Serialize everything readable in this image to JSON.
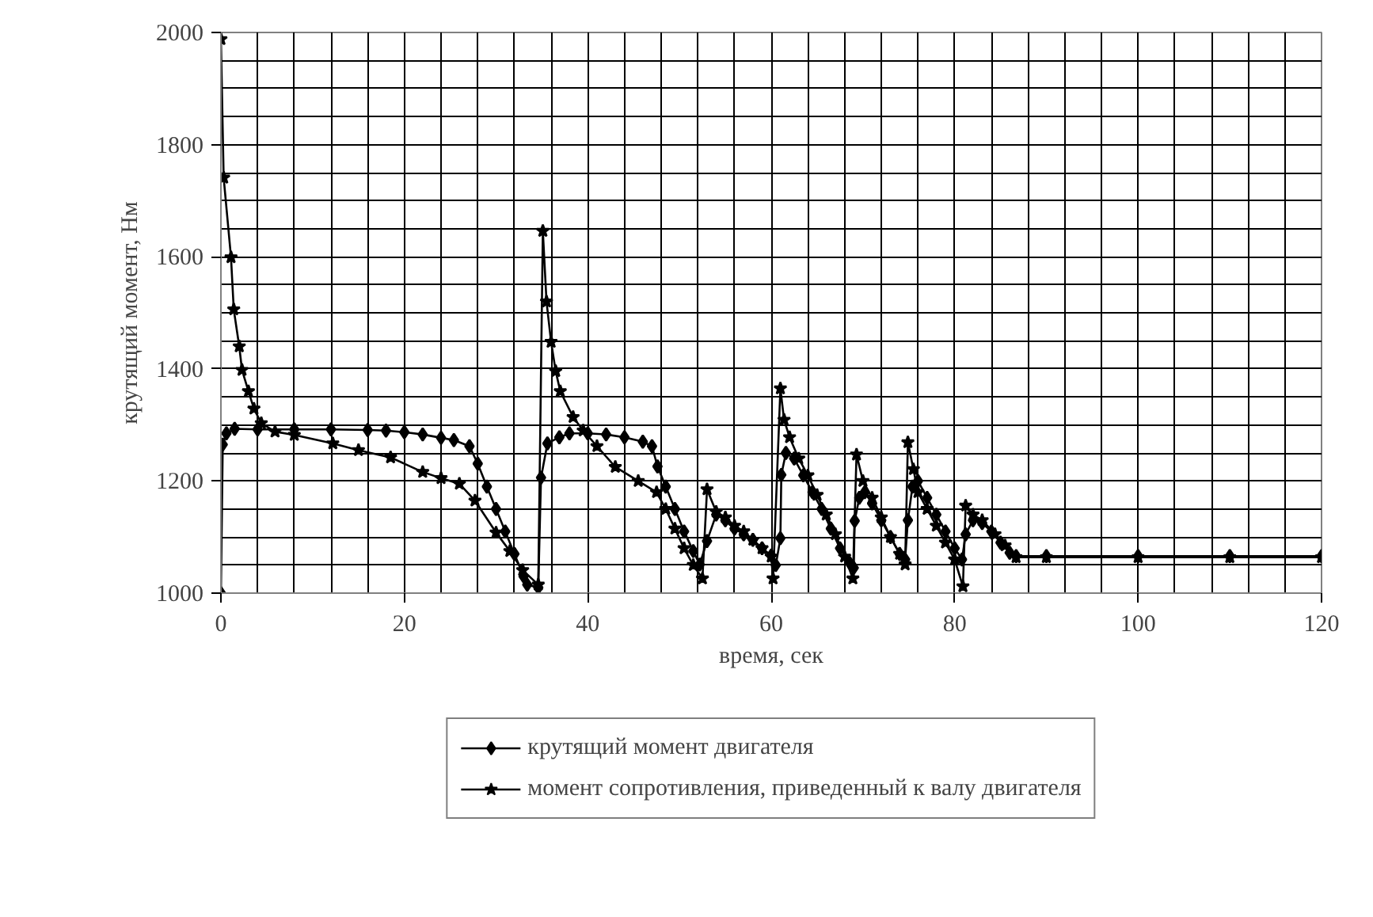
{
  "chart_data": {
    "type": "line",
    "xlabel": "время, сек",
    "ylabel": "крутящий момент, Нм",
    "xlim": [
      0,
      120
    ],
    "ylim": [
      1000,
      2000
    ],
    "xticks": [
      0,
      {
        "value": 4,
        "label": null
      },
      {
        "value": 8,
        "label": null
      },
      {
        "value": 12,
        "label": null
      },
      {
        "value": 16,
        "label": null
      },
      20,
      {
        "value": 24,
        "label": null
      },
      {
        "value": 28,
        "label": null
      },
      {
        "value": 32,
        "label": null
      },
      {
        "value": 36,
        "label": null
      },
      40,
      {
        "value": 44,
        "label": null
      },
      {
        "value": 48,
        "label": null
      },
      {
        "value": 52,
        "label": null
      },
      {
        "value": 56,
        "label": null
      },
      60,
      {
        "value": 64,
        "label": null
      },
      {
        "value": 68,
        "label": null
      },
      {
        "value": 72,
        "label": null
      },
      {
        "value": 76,
        "label": null
      },
      80,
      {
        "value": 84,
        "label": null
      },
      {
        "value": 88,
        "label": null
      },
      {
        "value": 92,
        "label": null
      },
      {
        "value": 96,
        "label": null
      },
      100,
      {
        "value": 104,
        "label": null
      },
      {
        "value": 108,
        "label": null
      },
      {
        "value": 112,
        "label": null
      },
      {
        "value": 116,
        "label": null
      },
      120
    ],
    "yticks": [
      1000,
      {
        "value": 1050,
        "label": null
      },
      {
        "value": 1100,
        "label": null
      },
      {
        "value": 1150,
        "label": null
      },
      1200,
      {
        "value": 1250,
        "label": null
      },
      {
        "value": 1300,
        "label": null
      },
      {
        "value": 1350,
        "label": null
      },
      1400,
      {
        "value": 1450,
        "label": null
      },
      {
        "value": 1500,
        "label": null
      },
      {
        "value": 1550,
        "label": null
      },
      1600,
      {
        "value": 1650,
        "label": null
      },
      {
        "value": 1700,
        "label": null
      },
      {
        "value": 1750,
        "label": null
      },
      1800,
      {
        "value": 1850,
        "label": null
      },
      {
        "value": 1900,
        "label": null
      },
      {
        "value": 1950,
        "label": null
      },
      2000
    ],
    "grid": true,
    "legend": "bottom",
    "line_style": "solid",
    "series": [
      {
        "name": "крутящий момент двигателя",
        "color": "#000000",
        "marker": "diamond",
        "x": [
          0,
          0.2,
          0.6,
          1.5,
          4,
          8,
          12,
          16,
          18,
          20,
          22,
          24,
          25.4,
          27.1,
          28,
          29,
          30,
          31,
          32,
          33,
          33.4,
          34.6,
          34.9,
          35.6,
          36.9,
          38,
          40,
          42,
          44,
          46,
          47,
          47.6,
          48.5,
          49.5,
          50.5,
          51.5,
          52.2,
          53,
          54,
          55,
          56,
          57,
          58,
          59,
          60,
          60.5,
          61,
          61.1,
          61.6,
          62.5,
          63.5,
          64.5,
          65.5,
          66.5,
          67.5,
          68.5,
          69,
          69.1,
          69.6,
          70.2,
          71,
          72,
          73,
          74,
          74.6,
          74.9,
          75.4,
          76,
          77,
          78,
          79,
          80,
          80.8,
          81.2,
          82,
          83,
          84,
          85,
          86,
          86.7,
          90,
          100,
          110,
          120
        ],
        "values": [
          1000,
          1265,
          1285,
          1293,
          1292,
          1292,
          1292,
          1291,
          1290,
          1287,
          1283,
          1277,
          1273,
          1262,
          1231,
          1190,
          1150,
          1110,
          1070,
          1030,
          1015,
          1010,
          1206,
          1267,
          1278,
          1285,
          1285,
          1283,
          1278,
          1270,
          1262,
          1226,
          1190,
          1150,
          1110,
          1075,
          1051,
          1093,
          1140,
          1130,
          1115,
          1105,
          1095,
          1080,
          1067,
          1050,
          1098,
          1211,
          1250,
          1240,
          1210,
          1180,
          1150,
          1115,
          1080,
          1055,
          1045,
          1129,
          1170,
          1180,
          1160,
          1130,
          1100,
          1070,
          1060,
          1130,
          1190,
          1200,
          1170,
          1140,
          1110,
          1080,
          1060,
          1105,
          1130,
          1125,
          1110,
          1090,
          1072,
          1066,
          1066,
          1066,
          1066,
          1066
        ]
      },
      {
        "name": "момент сопротивления, приведенный к валу двигателя",
        "color": "#000000",
        "marker": "star",
        "x": [
          0,
          0.3,
          1.1,
          1.4,
          2,
          2.3,
          3,
          3.6,
          4.4,
          5.9,
          8,
          12.2,
          15,
          18.5,
          22,
          24,
          26,
          27.7,
          30,
          31.5,
          32.9,
          34.6,
          35.1,
          35.5,
          36,
          36.5,
          37,
          38.4,
          39.5,
          41,
          43,
          45.5,
          47.5,
          48.5,
          49.5,
          50.5,
          51.5,
          52.5,
          53,
          54,
          55,
          56,
          57,
          58,
          59,
          60,
          60.2,
          61,
          61.4,
          62,
          63,
          64,
          65,
          66,
          67,
          68,
          68.9,
          69.3,
          70,
          71,
          72,
          73,
          74,
          74.6,
          74.9,
          75.5,
          76,
          77,
          78,
          79,
          80,
          80.9,
          81.2,
          82,
          83,
          84.4,
          85.5,
          86.7,
          90,
          100,
          110,
          120
        ],
        "values": [
          1988,
          1741,
          1599,
          1506,
          1440,
          1398,
          1360,
          1329,
          1303,
          1288,
          1282,
          1267,
          1255,
          1242,
          1216,
          1205,
          1195,
          1165,
          1108,
          1075,
          1041,
          1015,
          1646,
          1520,
          1448,
          1396,
          1360,
          1314,
          1290,
          1262,
          1225,
          1200,
          1180,
          1150,
          1115,
          1080,
          1050,
          1026,
          1185,
          1145,
          1135,
          1120,
          1110,
          1095,
          1080,
          1065,
          1026,
          1365,
          1309,
          1278,
          1240,
          1210,
          1175,
          1140,
          1105,
          1065,
          1026,
          1247,
          1200,
          1170,
          1135,
          1100,
          1070,
          1051,
          1269,
          1221,
          1180,
          1150,
          1120,
          1090,
          1060,
          1012,
          1156,
          1140,
          1130,
          1105,
          1085,
          1064,
          1064,
          1064,
          1064,
          1064
        ]
      }
    ]
  }
}
